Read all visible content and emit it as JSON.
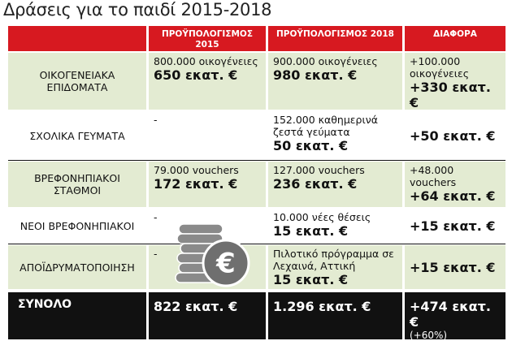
{
  "title": "Δράσεις για το παιδί 2015-2018",
  "table": {
    "header": [
      "ΠΡΟΫΠΟΛΟΓΙΣΜΟΣ 2015",
      "ΠΡΟΫΠΟΛΟΓΙΣΜΟΣ 2018",
      "ΔΙΑΦΟΡΑ"
    ],
    "rows": [
      {
        "label": "ΟΙΚΟΓΕΝΕΙΑΚΑ ΕΠΙΔΟΜΑΤΑ",
        "cells": [
          {
            "text": "800.000 οικογένειες",
            "amount": "650 εκατ. €"
          },
          {
            "text": "900.000 οικογένειες",
            "amount": "980 εκατ. €"
          },
          {
            "text": "+100.000 οικογένειες",
            "amount": "+330 εκατ. €"
          }
        ]
      },
      {
        "label": "ΣΧΟΛΙΚΑ ΓΕΥΜΑΤΑ",
        "cells": [
          {
            "text": "-"
          },
          {
            "text": "152.000 καθημερινά ζεστά γεύματα",
            "amount": "50 εκατ. €"
          },
          {
            "amount": "+50 εκατ. €"
          }
        ]
      },
      {
        "label": "ΒΡΕΦΟΝΗΠΙΑΚΟΙ ΣΤΑΘΜΟΙ",
        "cells": [
          {
            "text": "79.000 vouchers",
            "amount": "172 εκατ. €"
          },
          {
            "text": "127.000 vouchers",
            "amount": "236 εκατ. €"
          },
          {
            "text": "+48.000 vouchers",
            "amount": "+64 εκατ. €"
          }
        ]
      },
      {
        "label": "ΝΕΟΙ ΒΡΕΦΟΝΗΠΙΑΚΟΙ",
        "cells": [
          {
            "text": "-"
          },
          {
            "text": "10.000 νέες θέσεις",
            "amount": "15 εκατ. €"
          },
          {
            "amount": "+15 εκατ. €"
          }
        ]
      },
      {
        "label": "ΑΠΟΪΔΡΥΜΑΤΟΠΟΙΗΣΗ",
        "cells": [
          {
            "text": "-"
          },
          {
            "text": "Πιλοτικό πρόγραμμα σε Λεχαινά, Αττική",
            "amount": "15 εκατ. €"
          },
          {
            "amount": "+15 εκατ. €"
          }
        ]
      }
    ],
    "total": {
      "label": "ΣΥΝΟΛΟ",
      "cells": [
        {
          "amount": "822 εκατ. €"
        },
        {
          "amount": "1.296 εκατ. €"
        },
        {
          "amount": "+474 εκατ. €",
          "note": "(+60%)"
        }
      ]
    }
  }
}
